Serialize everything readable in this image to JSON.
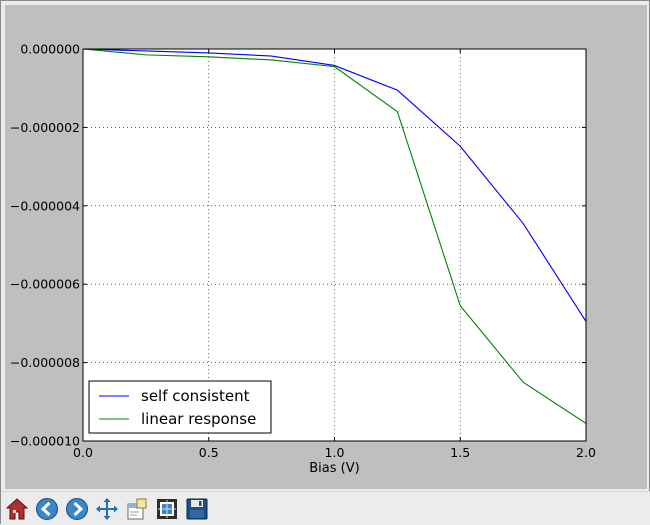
{
  "chart_data": {
    "type": "line",
    "title": "",
    "xlabel": "Bias (V)",
    "ylabel": "",
    "xlim": [
      0.0,
      2.0
    ],
    "ylim": [
      -1e-05,
      0.0
    ],
    "x_ticks": [
      "0.0",
      "0.5",
      "1.0",
      "1.5",
      "2.0"
    ],
    "x_tick_values": [
      0.0,
      0.5,
      1.0,
      1.5,
      2.0
    ],
    "y_ticks": [
      "0.000000",
      "−0.000002",
      "−0.000004",
      "−0.000006",
      "−0.000008",
      "−0.000010"
    ],
    "y_tick_values": [
      0.0,
      -2e-06,
      -4e-06,
      -6e-06,
      -8e-06,
      -1e-05
    ],
    "grid": true,
    "legend_position": "lower-left",
    "x": [
      0.0,
      0.25,
      0.5,
      0.75,
      1.0,
      1.25,
      1.5,
      1.75,
      2.0
    ],
    "series": [
      {
        "name": "self consistent",
        "color": "#0000ff",
        "values": [
          0.0,
          -5e-08,
          -1e-07,
          -1.8e-07,
          -4.2e-07,
          -1.05e-06,
          -2.48e-06,
          -4.45e-06,
          -6.95e-06
        ]
      },
      {
        "name": "linear response",
        "color": "#008000",
        "values": [
          0.0,
          -1.5e-07,
          -2e-07,
          -2.8e-07,
          -4.5e-07,
          -1.6e-06,
          -6.55e-06,
          -8.5e-06,
          -9.55e-06
        ]
      }
    ]
  },
  "toolbar": {
    "buttons": [
      {
        "name": "home-icon",
        "label": "Home"
      },
      {
        "name": "back-icon",
        "label": "Back"
      },
      {
        "name": "forward-icon",
        "label": "Forward"
      },
      {
        "name": "pan-icon",
        "label": "Pan"
      },
      {
        "name": "zoom-icon",
        "label": "Zoom"
      },
      {
        "name": "subplots-icon",
        "label": "Configure subplots"
      },
      {
        "name": "save-icon",
        "label": "Save"
      }
    ]
  }
}
